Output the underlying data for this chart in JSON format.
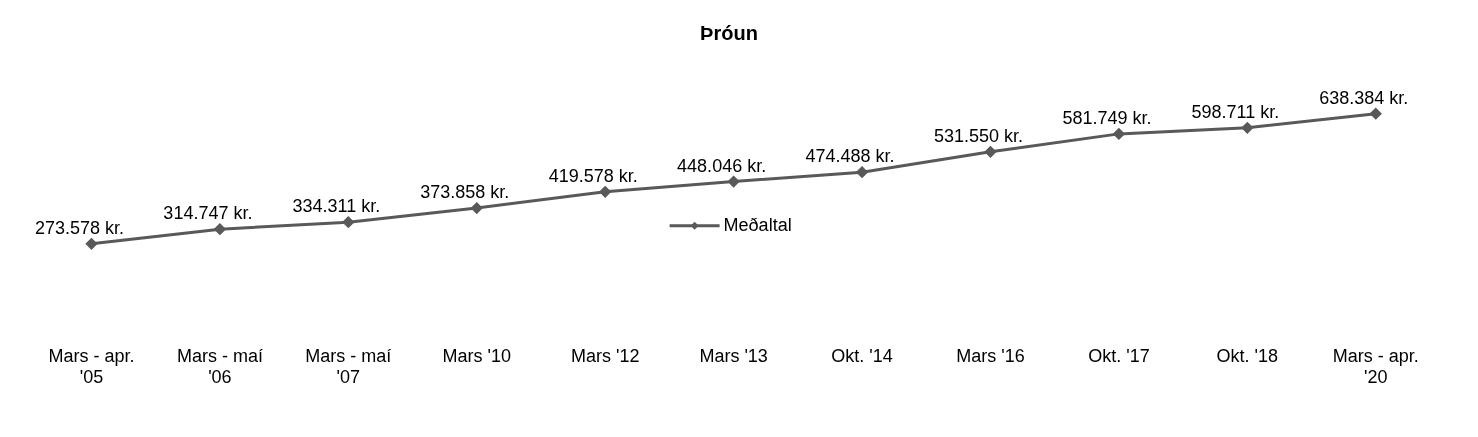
{
  "chart_data": {
    "type": "line",
    "title": "Þróun",
    "categories": [
      "Mars - apr. '05",
      "Mars - maí '06",
      "Mars - maí '07",
      "Mars '10",
      "Mars '12",
      "Mars '13",
      "Okt. '14",
      "Mars '16",
      "Okt. '17",
      "Okt. '18",
      "Mars - apr. '20"
    ],
    "series": [
      {
        "name": "Meðaltal",
        "color": "#595959",
        "values": [
          273578,
          314747,
          334311,
          373858,
          419578,
          448046,
          474488,
          531550,
          581749,
          598711,
          638384
        ],
        "value_labels": [
          "273.578 kr.",
          "314.747 kr.",
          "334.311 kr.",
          "373.858 kr.",
          "419.578 kr.",
          "448.046 kr.",
          "474.488 kr.",
          "531.550 kr.",
          "581.749 kr.",
          "598.711 kr.",
          "638.384 kr."
        ]
      }
    ],
    "tick_labels": "x",
    "grid": false,
    "legend": "center",
    "marker": "diamond",
    "line_style": "solid"
  }
}
